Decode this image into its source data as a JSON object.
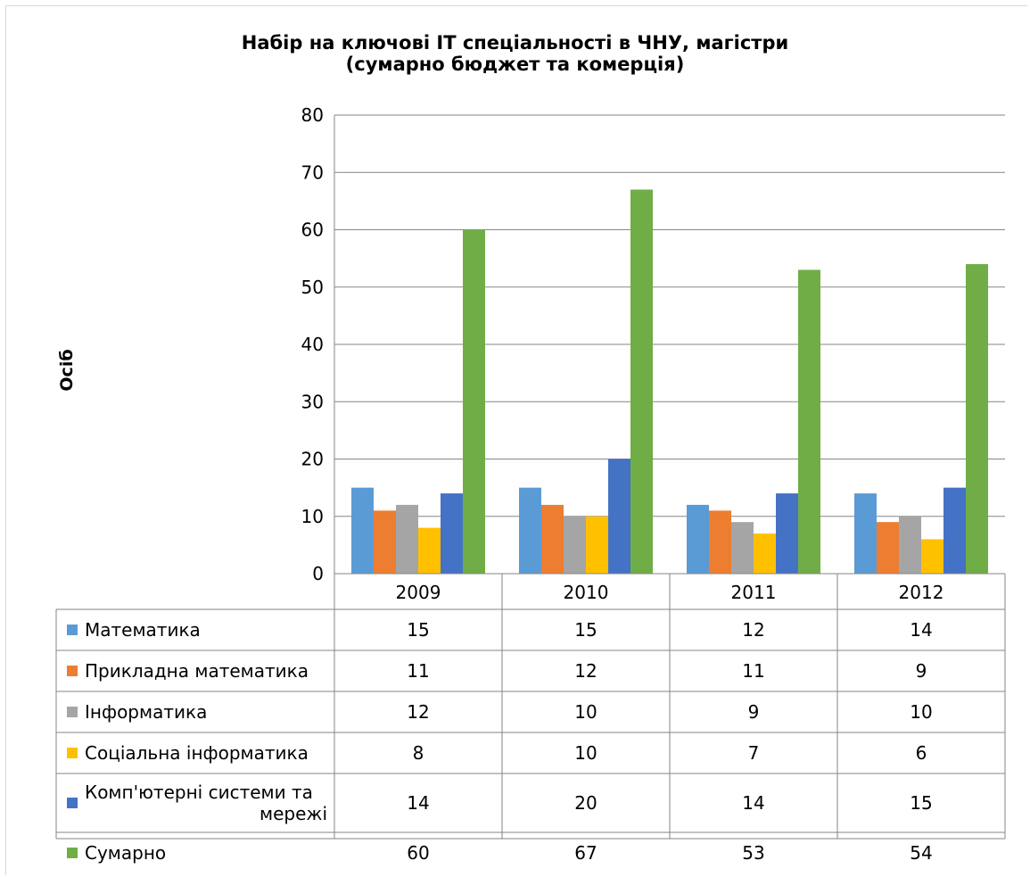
{
  "chart_data": {
    "type": "bar",
    "title": "Набір на ключові IT спеціальності в ЧНУ, магістри",
    "subtitle": "(сумарно бюджет та комерція)",
    "xlabel": "",
    "ylabel": "Осіб",
    "ylim": [
      0,
      80
    ],
    "yticks": [
      "0",
      "10",
      "20",
      "30",
      "40",
      "50",
      "60",
      "70",
      "80"
    ],
    "grid": true,
    "legend": "data-table-left",
    "categories": [
      "2009",
      "2010",
      "2011",
      "2012"
    ],
    "series": [
      {
        "name": "Математика",
        "color": "#5b9bd5",
        "values": [
          15,
          15,
          12,
          14
        ]
      },
      {
        "name": "Прикладна математика",
        "color": "#ed7d31",
        "values": [
          11,
          12,
          11,
          9
        ]
      },
      {
        "name": "Інформатика",
        "color": "#a5a5a5",
        "values": [
          12,
          10,
          9,
          10
        ]
      },
      {
        "name": "Соціальна інформатика",
        "color": "#ffc000",
        "values": [
          8,
          10,
          7,
          6
        ]
      },
      {
        "name": "Комп'ютерні системи та мережі",
        "color": "#4472c4",
        "values": [
          14,
          20,
          14,
          15
        ]
      },
      {
        "name": "Сумарно",
        "color": "#70ad47",
        "values": [
          60,
          67,
          53,
          54
        ]
      }
    ]
  }
}
